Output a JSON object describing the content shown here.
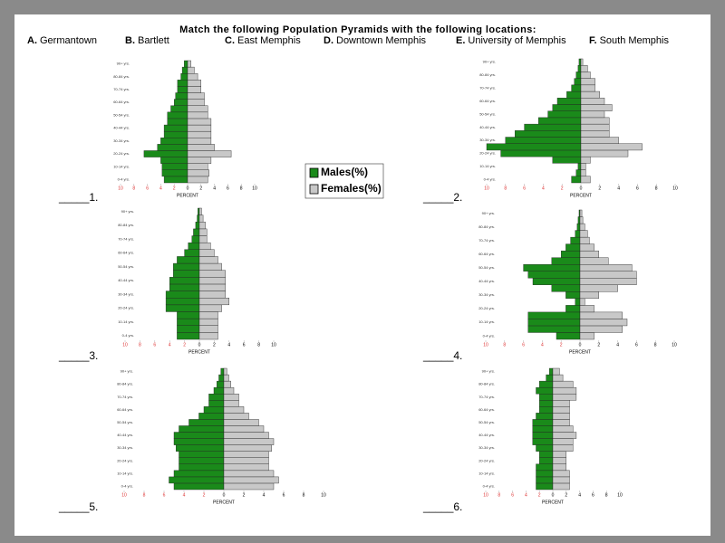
{
  "title": "Match the following Population Pyramids with the following locations:",
  "options": [
    {
      "letter": "A.",
      "name": "Germantown"
    },
    {
      "letter": "B.",
      "name": "Bartlett"
    },
    {
      "letter": "C.",
      "name": "East Memphis"
    },
    {
      "letter": "D.",
      "name": "Downtown Memphis"
    },
    {
      "letter": "E.",
      "name": "University of Memphis"
    },
    {
      "letter": "F.",
      "name": "South Memphis"
    }
  ],
  "chart_data": [
    {
      "type": "pyramid",
      "label": "_____1.",
      "xlabel": "PERCENT",
      "categories": [
        "0-4 yrs.",
        null,
        "10-14 yrs.",
        null,
        "20-24 yrs.",
        null,
        "30-34 yrs.",
        null,
        "40-44 yrs.",
        null,
        "50-54 yrs.",
        null,
        "60-64 yrs.",
        null,
        "70-74 yrs.",
        null,
        "80-84 yrs.",
        null,
        "90+ yrs."
      ],
      "series": [
        {
          "name": "Males(%)",
          "color": "#1a8a1a",
          "values": [
            -3.5,
            -3.8,
            -3.8,
            -4,
            -6.5,
            -4.5,
            -4,
            -3.5,
            -3.5,
            -3,
            -3,
            -2.5,
            -2,
            -1.8,
            -1.5,
            -1.5,
            -1,
            -0.8,
            -0.5
          ]
        },
        {
          "name": "Females(%)",
          "color": "#c8c8c8",
          "values": [
            3,
            3.2,
            3,
            3.5,
            6.5,
            4,
            3.5,
            3.5,
            3.5,
            3.5,
            3,
            3,
            2.5,
            2.5,
            2,
            2,
            1.5,
            1,
            0.5
          ]
        }
      ],
      "xlim": [
        -10,
        10
      ],
      "xticks": [
        {
          "value": -10,
          "label": "10"
        },
        {
          "value": -8,
          "label": "8"
        },
        {
          "value": -6,
          "label": "6"
        },
        {
          "value": -4,
          "label": "4"
        },
        {
          "value": -2,
          "label": "2"
        },
        0,
        2,
        4,
        6,
        8,
        10
      ]
    },
    {
      "type": "pyramid",
      "label": "_____2.",
      "xlabel": "PERCENT",
      "categories": [
        "0-4 yrs.",
        null,
        "10-14 yrs.",
        null,
        "20-24 yrs.",
        null,
        "30-34 yrs.",
        null,
        "40-44 yrs.",
        null,
        "50-54 yrs.",
        null,
        "60-64 yrs.",
        null,
        "70-74 yrs.",
        null,
        "80-84 yrs.",
        null,
        "90+ yrs."
      ],
      "series": [
        {
          "name": "Males(%)",
          "color": "#1a8a1a",
          "values": [
            -1,
            -0.5,
            -0.3,
            -3,
            -8.5,
            -10,
            -8,
            -7,
            -6,
            -4.5,
            -3.5,
            -3,
            -2.5,
            -1.5,
            -1,
            -0.7,
            -0.5,
            -0.3,
            -0.2
          ]
        },
        {
          "name": "Females(%)",
          "color": "#c8c8c8",
          "values": [
            1,
            0.5,
            0.5,
            1,
            5,
            6.5,
            4,
            3,
            3,
            3,
            2.5,
            3.3,
            2.5,
            2,
            1.5,
            1.5,
            1,
            0.7,
            0.2
          ]
        }
      ],
      "xlim": [
        -10,
        10
      ],
      "xticks": [
        {
          "value": -10,
          "label": "10"
        },
        {
          "value": -8,
          "label": "8"
        },
        {
          "value": -6,
          "label": "6"
        },
        {
          "value": -4,
          "label": "4"
        },
        {
          "value": -2,
          "label": "2"
        },
        0,
        2,
        4,
        6,
        8,
        10
      ]
    },
    {
      "type": "pyramid",
      "label": "_____3.",
      "xlabel": "PERCENT",
      "categories": [
        "0-4 yrs.",
        null,
        "10-14 yrs.",
        null,
        "20-24 yrs.",
        null,
        "30-34 yrs.",
        null,
        "40-44 yrs.",
        null,
        "50-54 yrs.",
        null,
        "60-64 yrs.",
        null,
        "70-74 yrs.",
        null,
        "80-84 yrs.",
        null,
        "90+ yrs."
      ],
      "series": [
        {
          "name": "Males(%)",
          "color": "#1a8a1a",
          "values": [
            -3,
            -3,
            -3,
            -3,
            -4.5,
            -4.5,
            -4.5,
            -4,
            -4,
            -3.5,
            -3.5,
            -3,
            -2,
            -1.5,
            -1,
            -0.8,
            -0.5,
            -0.3,
            -0.2
          ]
        },
        {
          "name": "Females(%)",
          "color": "#c8c8c8",
          "values": [
            2.5,
            2.5,
            2.5,
            2.5,
            3,
            4,
            3.5,
            3.5,
            3.5,
            3.5,
            3,
            2.5,
            2,
            1.5,
            1,
            1,
            0.8,
            0.5,
            0.3
          ]
        }
      ],
      "xlim": [
        -10,
        10
      ],
      "xticks": [
        {
          "value": -10,
          "label": "10"
        },
        {
          "value": -8,
          "label": "8"
        },
        {
          "value": -6,
          "label": "6"
        },
        {
          "value": -4,
          "label": "4"
        },
        {
          "value": -2,
          "label": "2"
        },
        0,
        2,
        4,
        6,
        8,
        10
      ]
    },
    {
      "type": "pyramid",
      "label": "_____4.",
      "xlabel": "PERCENT",
      "categories": [
        "0-4 yrs.",
        null,
        "10-14 yrs.",
        null,
        "20-24 yrs.",
        null,
        "30-34 yrs.",
        null,
        "40-44 yrs.",
        null,
        "50-54 yrs.",
        null,
        "60-64 yrs.",
        null,
        "70-74 yrs.",
        null,
        "80-84 yrs.",
        null,
        "90+ yrs."
      ],
      "series": [
        {
          "name": "Males(%)",
          "color": "#1a8a1a",
          "values": [
            -2.5,
            -5.5,
            -5.5,
            -5.5,
            -1.5,
            -0.5,
            -1.5,
            -3,
            -5,
            -5.5,
            -6,
            -3,
            -2,
            -1.5,
            -1,
            -0.5,
            -0.3,
            -0.2,
            -0.1
          ]
        },
        {
          "name": "Females(%)",
          "color": "#c8c8c8",
          "values": [
            1.5,
            4.5,
            5,
            4.5,
            1.5,
            0.5,
            2,
            4,
            6,
            6,
            5.5,
            3,
            2,
            1.5,
            1,
            0.8,
            0.5,
            0.3,
            0.2
          ]
        }
      ],
      "xlim": [
        -10,
        10
      ],
      "xticks": [
        {
          "value": -10,
          "label": "10"
        },
        {
          "value": -8,
          "label": "8"
        },
        {
          "value": -6,
          "label": "6"
        },
        {
          "value": -4,
          "label": "4"
        },
        {
          "value": -2,
          "label": "2"
        },
        0,
        2,
        4,
        6,
        8,
        10
      ]
    },
    {
      "type": "pyramid",
      "label": "_____5.",
      "xlabel": "PERCENT",
      "categories": [
        "0-4 yrs.",
        null,
        "10-14 yrs.",
        null,
        "20-24 yrs.",
        null,
        "30-34 yrs.",
        null,
        "40-44 yrs.",
        null,
        "50-54 yrs.",
        null,
        "60-64 yrs.",
        null,
        "70-74 yrs.",
        null,
        "80-84 yrs.",
        null,
        "90+ yrs."
      ],
      "series": [
        {
          "name": "Males(%)",
          "color": "#1a8a1a",
          "values": [
            -5,
            -5.5,
            -5,
            -4.5,
            -4.5,
            -4.5,
            -4.8,
            -5,
            -5,
            -4.5,
            -3.5,
            -2.5,
            -2,
            -1.5,
            -1.5,
            -1,
            -0.7,
            -0.5,
            -0.3
          ]
        },
        {
          "name": "Females(%)",
          "color": "#c8c8c8",
          "values": [
            5,
            5.5,
            5,
            4.5,
            4.5,
            4.5,
            4.8,
            5,
            4.5,
            4,
            3.5,
            2.5,
            2,
            1.5,
            1.5,
            1,
            0.7,
            0.5,
            0.3
          ]
        }
      ],
      "xlim": [
        -10,
        10
      ],
      "xticks": [
        {
          "value": -10,
          "label": "10"
        },
        {
          "value": -8,
          "label": "8"
        },
        {
          "value": -6,
          "label": "6"
        },
        {
          "value": -4,
          "label": "4"
        },
        {
          "value": -2,
          "label": "2"
        },
        0,
        2,
        4,
        6,
        8,
        10
      ]
    },
    {
      "type": "pyramid",
      "label": "_____6.",
      "xlabel": "PERCENT",
      "categories": [
        "0-4 yrs.",
        null,
        "10-14 yrs.",
        null,
        "20-24 yrs.",
        null,
        "30-34 yrs.",
        null,
        "40-44 yrs.",
        null,
        "50-54 yrs.",
        null,
        "60-64 yrs.",
        null,
        "70-74 yrs.",
        null,
        "80-84 yrs.",
        null,
        "90+ yrs."
      ],
      "series": [
        {
          "name": "Males(%)",
          "color": "#1a8a1a",
          "values": [
            -2.5,
            -2.5,
            -2.5,
            -2.5,
            -2,
            -2,
            -2.5,
            -3,
            -3,
            -3,
            -3,
            -2.5,
            -2,
            -2,
            -2,
            -2.5,
            -2,
            -1,
            -0.5
          ]
        },
        {
          "name": "Females(%)",
          "color": "#c8c8c8",
          "values": [
            2.5,
            2.5,
            2.5,
            2,
            2,
            2,
            3,
            3,
            3.5,
            3,
            2.5,
            2.5,
            2.5,
            2.5,
            3.5,
            3.5,
            3,
            1.5,
            1
          ]
        }
      ],
      "xlim": [
        -10,
        10
      ],
      "xticks": [
        {
          "value": -10,
          "label": "10"
        },
        {
          "value": -8,
          "label": "8"
        },
        {
          "value": -6,
          "label": "6"
        },
        {
          "value": -4,
          "label": "4"
        },
        {
          "value": -2,
          "label": "2"
        },
        0,
        2,
        4,
        6,
        8,
        10
      ]
    }
  ]
}
